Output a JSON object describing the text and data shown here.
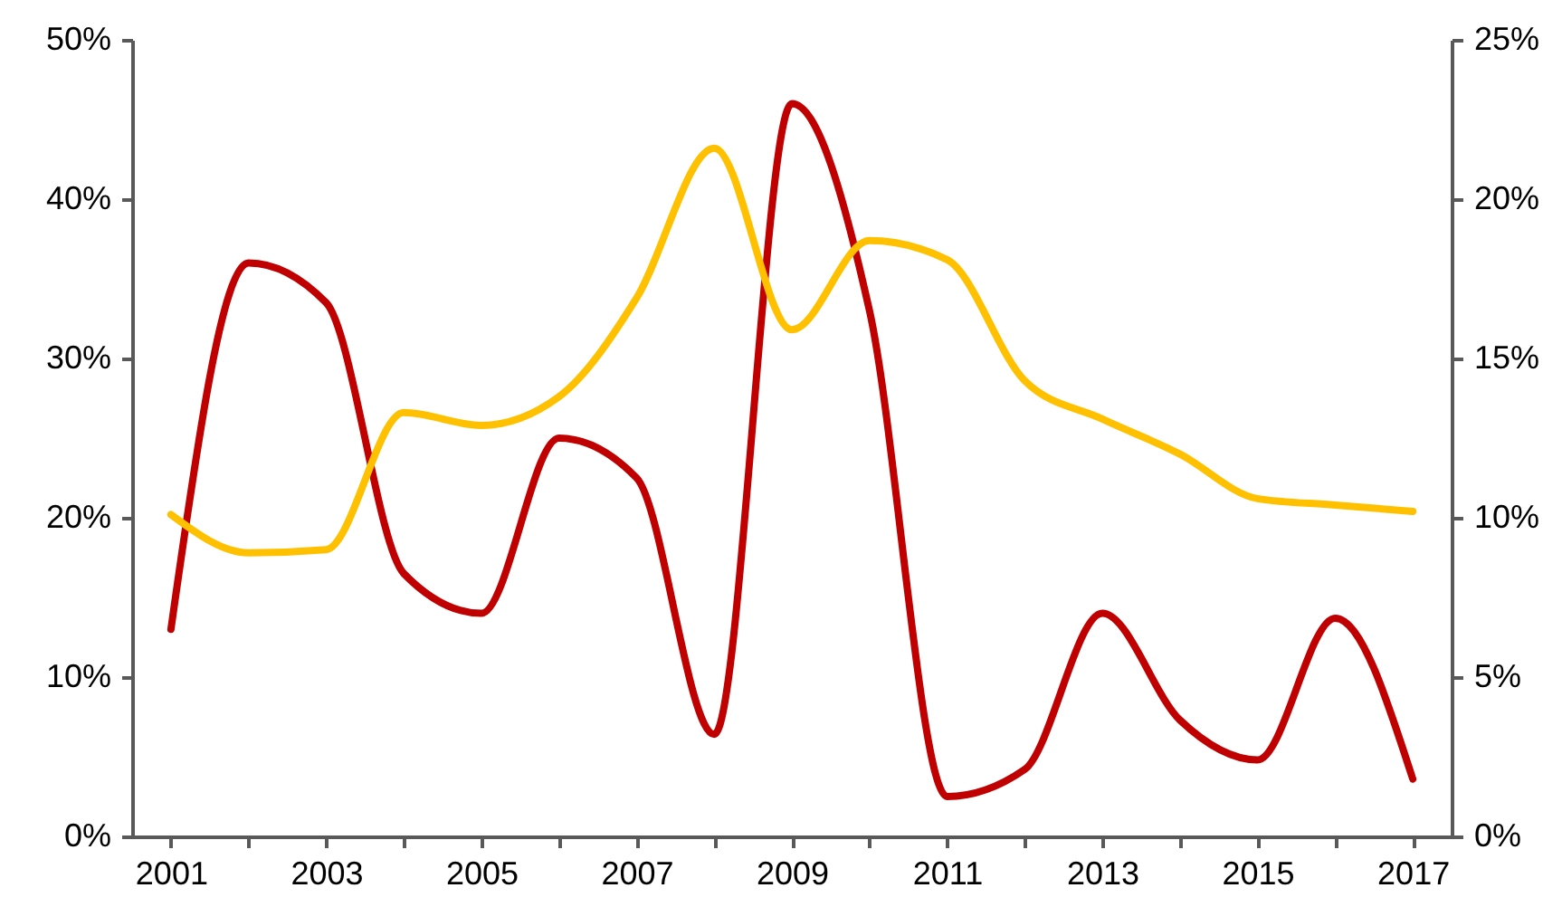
{
  "chart_data": {
    "type": "line",
    "categories": [
      "2001",
      null,
      "2003",
      null,
      "2005",
      null,
      "2007",
      null,
      "2009",
      null,
      "2011",
      null,
      "2013",
      null,
      "2015",
      null,
      "2017"
    ],
    "series": [
      {
        "color": "#c00000",
        "values": [
          13,
          36,
          33.5,
          16.5,
          14,
          25,
          22.5,
          6.4,
          46,
          33,
          2.5,
          4.2,
          14,
          7.3,
          4.8,
          13.7,
          3.6
        ]
      },
      {
        "color": "#ffc000",
        "axis": "y2",
        "values": [
          10.1,
          8.9,
          9.0,
          13.3,
          12.9,
          13.8,
          16.9,
          21.6,
          15.9,
          18.7,
          18.1,
          14.3,
          13.1,
          12.0,
          10.6,
          10.4,
          10.2
        ]
      }
    ],
    "ylim": [
      0,
      50
    ],
    "yticks": [
      {
        "value": 0,
        "label": "0%"
      },
      {
        "value": 10,
        "label": "10%"
      },
      {
        "value": 20,
        "label": "20%"
      },
      {
        "value": 30,
        "label": "30%"
      },
      {
        "value": 40,
        "label": "40%"
      },
      {
        "value": 50,
        "label": "50%"
      }
    ],
    "y2lim": [
      0,
      25
    ],
    "y2ticks": [
      {
        "value": 0,
        "label": "0%"
      },
      {
        "value": 5,
        "label": "5%"
      },
      {
        "value": 10,
        "label": "10%"
      },
      {
        "value": 15,
        "label": "15%"
      },
      {
        "value": 20,
        "label": "20%"
      },
      {
        "value": 25,
        "label": "25%"
      }
    ],
    "grid": false
  }
}
